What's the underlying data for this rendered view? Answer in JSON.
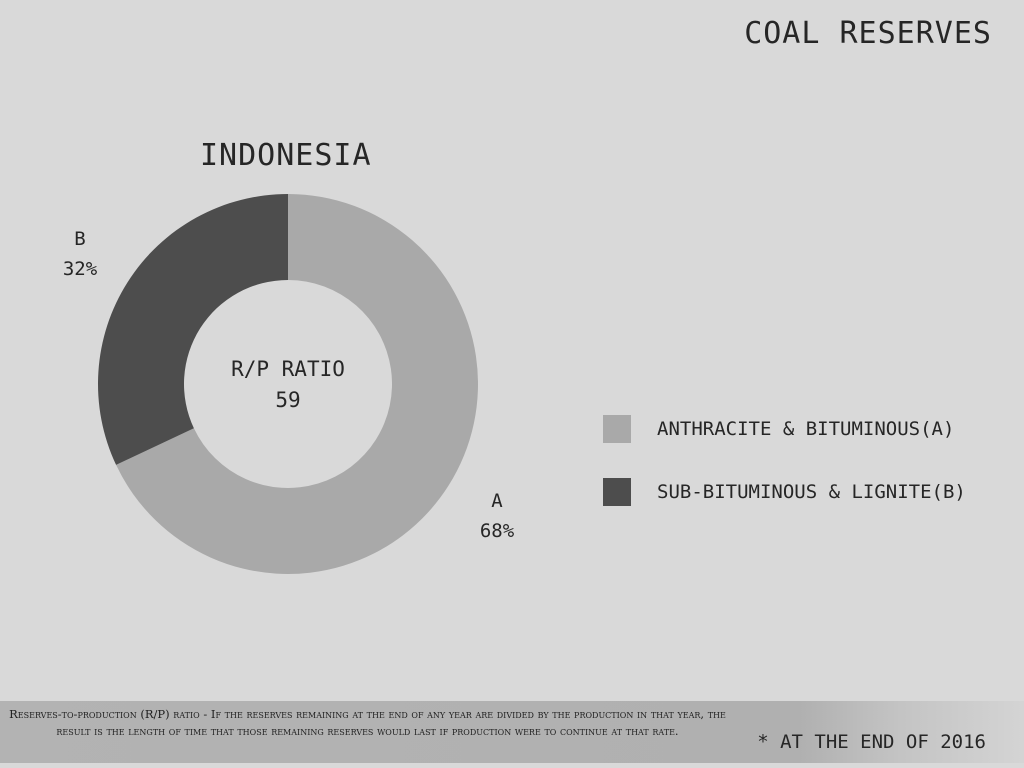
{
  "header": {
    "title": "COAL RESERVES"
  },
  "chart_data": {
    "type": "pie",
    "title": "INDONESIA",
    "center_text": {
      "label": "R/P RATIO",
      "value": "59"
    },
    "slices": [
      {
        "key": "A",
        "name": "ANTHRACITE & BITUMINOUS(A)",
        "value": 68,
        "display": "68%",
        "color": "#a9a9a9"
      },
      {
        "key": "B",
        "name": "SUB-BITUMINOUS & LIGNITE(B)",
        "value": 32,
        "display": "32%",
        "color": "#4d4d4d"
      }
    ],
    "legend_position": "right",
    "donut": true
  },
  "footer": {
    "note": "Reserves-to-production (R/P) ratio - If the reserves remaining at the end of any year are divided by the production in that year, the result is the length of time that those remaining reserves would last if production were to continue at that rate.",
    "as_of": "* AT THE END OF 2016"
  }
}
